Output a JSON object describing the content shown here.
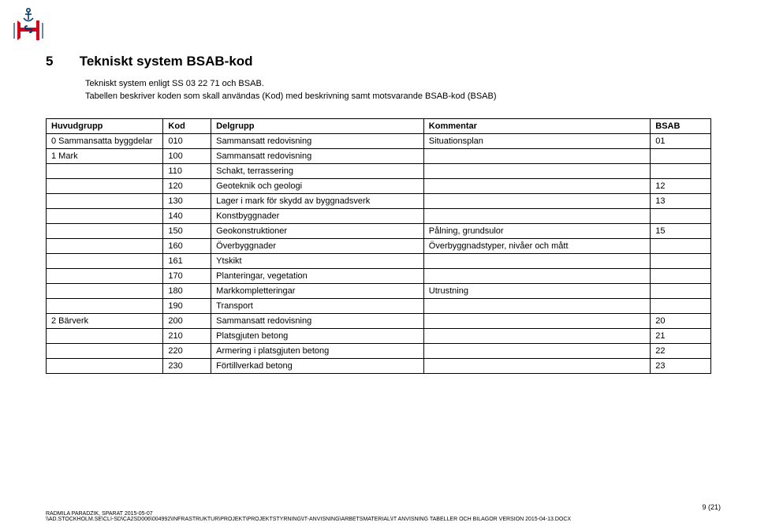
{
  "logo_colors": {
    "blue": "#003a70",
    "red": "#d6001c",
    "white": "#ffffff"
  },
  "heading": {
    "number": "5",
    "title": "Tekniskt system BSAB-kod"
  },
  "intro": [
    "Tekniskt system enligt SS 03 22 71 och BSAB.",
    "Tabellen beskriver koden som skall användas (Kod) med beskrivning samt motsvarande BSAB-kod (BSAB)"
  ],
  "columns": [
    "Huvudgrupp",
    "Kod",
    "Delgrupp",
    "Kommentar",
    "BSAB"
  ],
  "rows": [
    {
      "hg": "0 Sammansatta byggdelar",
      "kod": "010",
      "del": "Sammansatt redovisning",
      "komm": "Situationsplan",
      "bsab": "01"
    },
    {
      "hg": "1 Mark",
      "kod": "100",
      "del": "Sammansatt redovisning",
      "komm": "",
      "bsab": ""
    },
    {
      "hg": "",
      "kod": "110",
      "del": "Schakt, terrassering",
      "komm": "",
      "bsab": ""
    },
    {
      "hg": "",
      "kod": "120",
      "del": "Geoteknik och geologi",
      "komm": "",
      "bsab": "12"
    },
    {
      "hg": "",
      "kod": "130",
      "del": "Lager i mark för skydd av byggnadsverk",
      "komm": "",
      "bsab": "13"
    },
    {
      "hg": "",
      "kod": "140",
      "del": "Konstbyggnader",
      "komm": "",
      "bsab": ""
    },
    {
      "hg": "",
      "kod": "150",
      "del": "Geokonstruktioner",
      "komm": "Pålning, grundsulor",
      "bsab": "15"
    },
    {
      "hg": "",
      "kod": "160",
      "del": "Överbyggnader",
      "komm": "Överbyggnadstyper, nivåer och mått",
      "bsab": ""
    },
    {
      "hg": "",
      "kod": "161",
      "del": "Ytskikt",
      "komm": "",
      "bsab": ""
    },
    {
      "hg": "",
      "kod": "170",
      "del": "Planteringar, vegetation",
      "komm": "",
      "bsab": ""
    },
    {
      "hg": "",
      "kod": "180",
      "del": "Markkompletteringar",
      "komm": "Utrustning",
      "bsab": ""
    },
    {
      "hg": "",
      "kod": "190",
      "del": "Transport",
      "komm": "",
      "bsab": ""
    },
    {
      "hg": "2 Bärverk",
      "kod": "200",
      "del": "Sammansatt redovisning",
      "komm": "",
      "bsab": "20"
    },
    {
      "hg": "",
      "kod": "210",
      "del": "Platsgjuten betong",
      "komm": "",
      "bsab": "21"
    },
    {
      "hg": "",
      "kod": "220",
      "del": "Armering i platsgjuten betong",
      "komm": "",
      "bsab": "22"
    },
    {
      "hg": "",
      "kod": "230",
      "del": "Förtillverkad betong",
      "komm": "",
      "bsab": "23"
    }
  ],
  "footer": {
    "line1": "RADMILA PARADZIK, SPARAT 2015-05-07",
    "line2": "\\\\AD.STOCKHOLM.SE\\CLI-SD\\CA2SD006\\004992\\INFRASTRUKTUR\\PROJEKT\\PROJEKTSTYRNING\\IT-ANVISNING\\ARBETSMATERIAL\\IT ANVISNING TABELLER OCH BILAGOR VERSION 2015-04-13.DOCX",
    "page": "9 (21)"
  }
}
